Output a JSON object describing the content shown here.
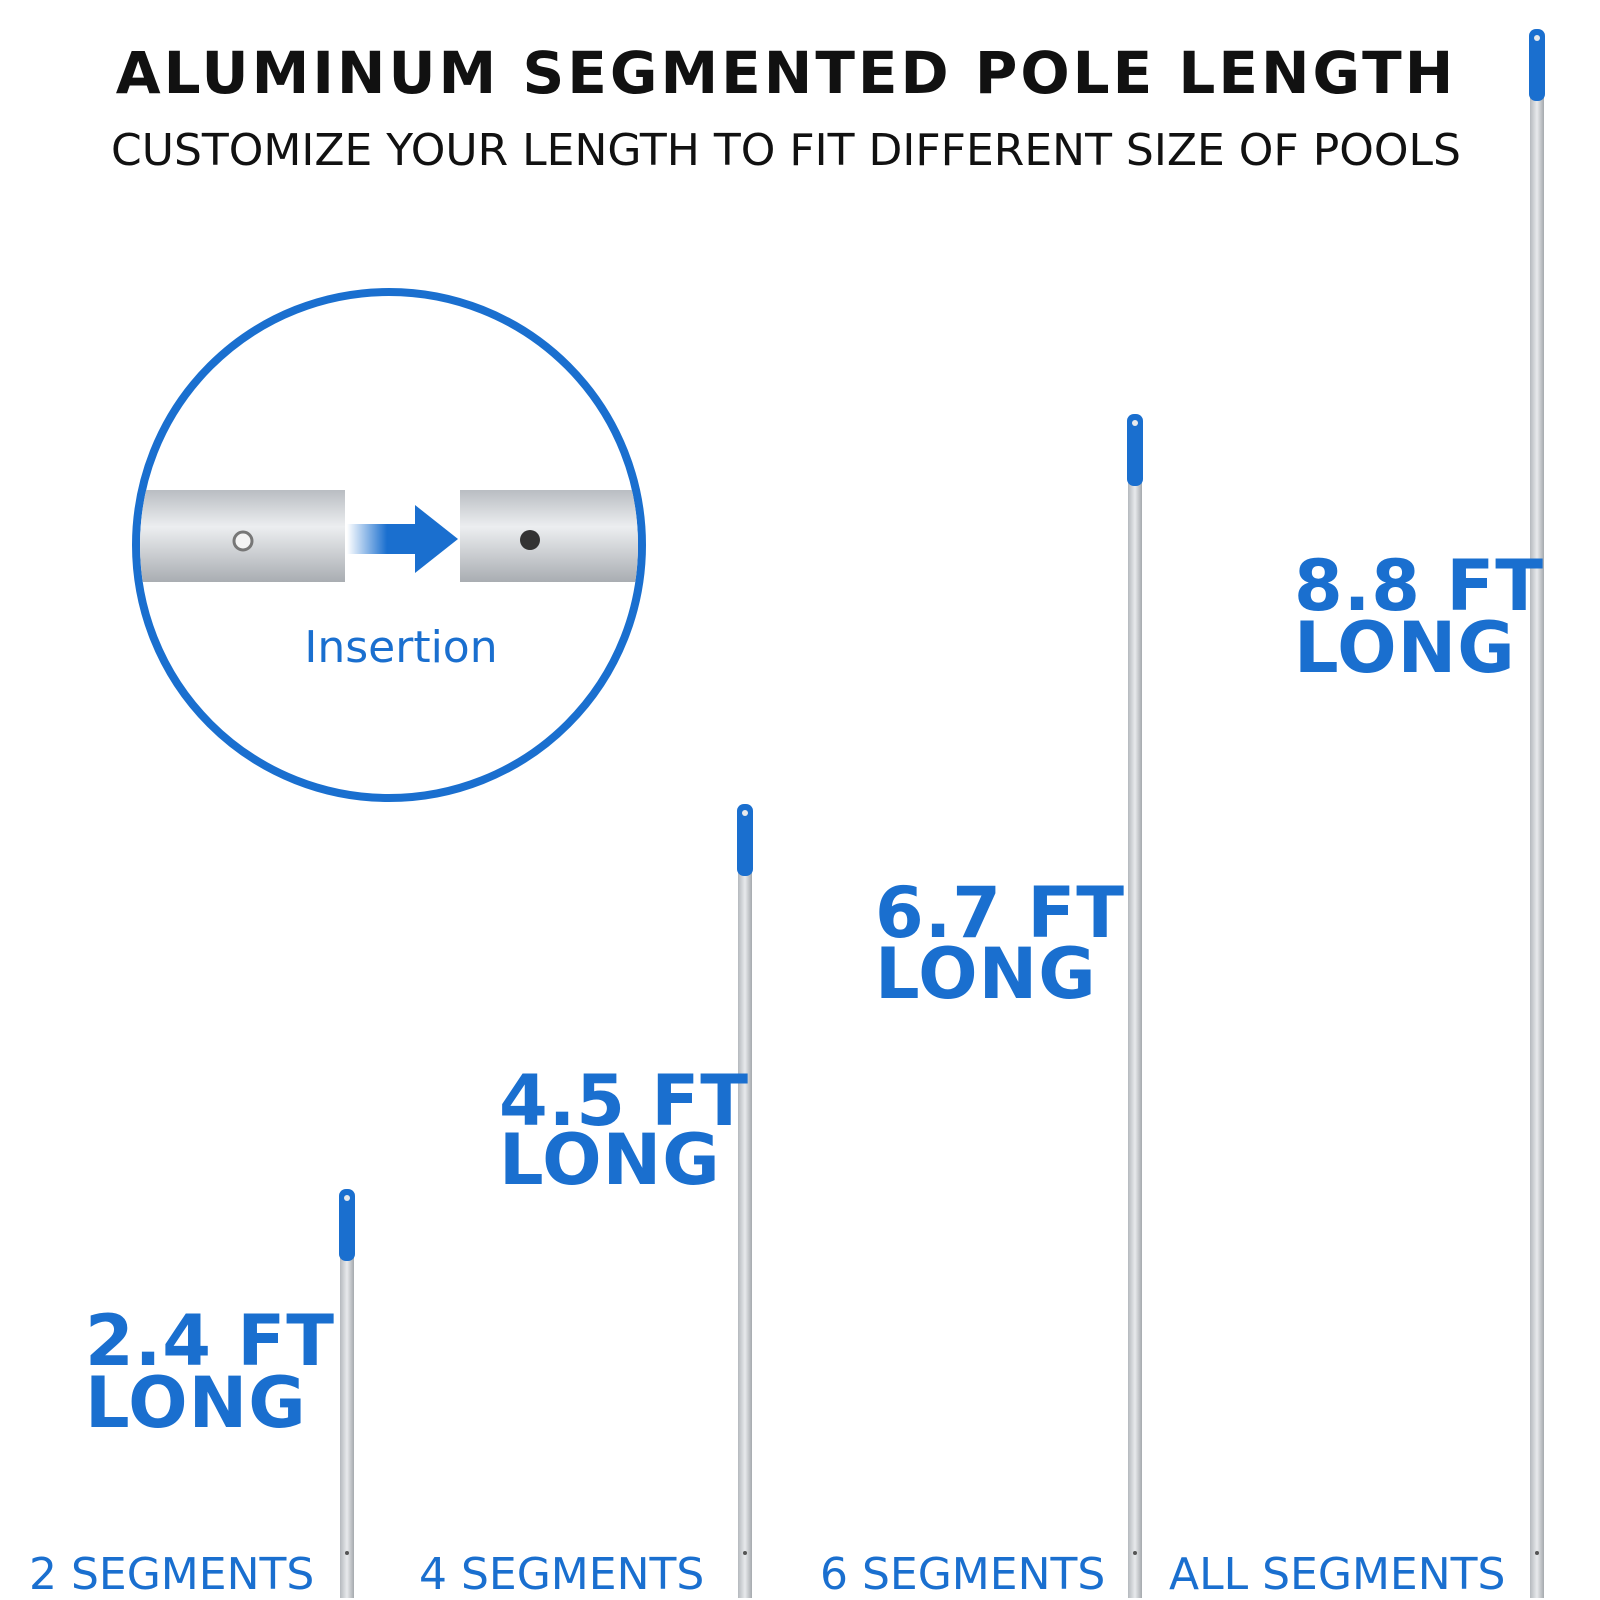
{
  "header": {
    "title": "ALUMINUM SEGMENTED POLE LENGTH",
    "subtitle": "CUSTOMIZE YOUR LENGTH TO FIT DIFFERENT SIZE OF POOLS"
  },
  "inset": {
    "label": "Insertion"
  },
  "poles": [
    {
      "length": "2.4 FT",
      "suffix": "LONG",
      "segments": "2 SEGMENTS"
    },
    {
      "length": "4.5 FT",
      "suffix": "LONG",
      "segments": "4 SEGMENTS"
    },
    {
      "length": "6.7 FT",
      "suffix": "LONG",
      "segments": "6 SEGMENTS"
    },
    {
      "length": "8.8 FT",
      "suffix": "LONG",
      "segments": "ALL SEGMENTS"
    }
  ]
}
